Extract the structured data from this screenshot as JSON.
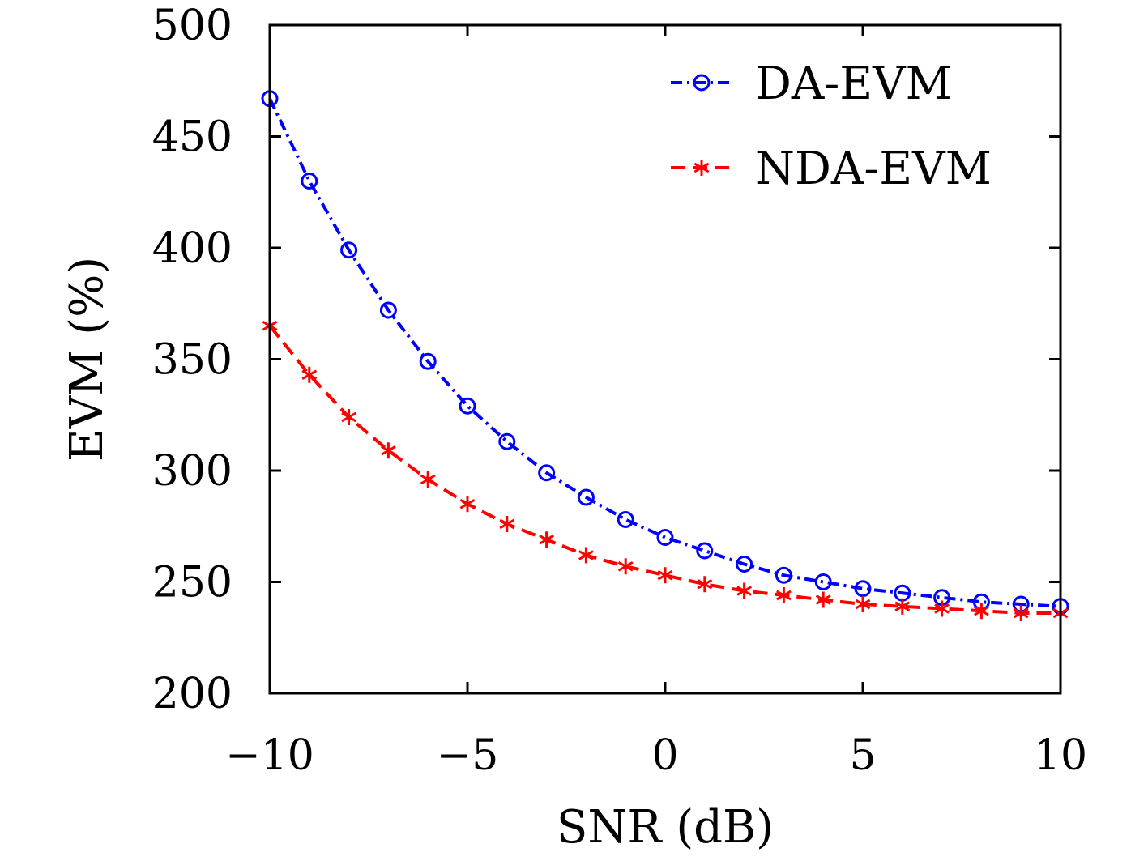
{
  "chart_data": {
    "type": "line",
    "title": "",
    "xlabel": "SNR (dB)",
    "ylabel": "EVM (%)",
    "xlim": [
      -10,
      10
    ],
    "ylim": [
      200,
      500
    ],
    "xticks": [
      -10,
      -5,
      0,
      5,
      10
    ],
    "xtick_labels": [
      "−10",
      "−5",
      "0",
      "5",
      "10"
    ],
    "yticks": [
      200,
      250,
      300,
      350,
      400,
      450,
      500
    ],
    "ytick_labels": [
      "200",
      "250",
      "300",
      "350",
      "400",
      "450",
      "500"
    ],
    "grid": false,
    "legend_position": "top-right",
    "x": [
      -10,
      -9,
      -8,
      -7,
      -6,
      -5,
      -4,
      -3,
      -2,
      -1,
      0,
      1,
      2,
      3,
      4,
      5,
      6,
      7,
      8,
      9,
      10
    ],
    "series": [
      {
        "name": "DA-EVM",
        "color": "#0000ff",
        "line_style": "dash-dot",
        "marker": "circle",
        "values": [
          467,
          430,
          399,
          372,
          349,
          329,
          313,
          299,
          288,
          278,
          270,
          264,
          258,
          253,
          250,
          247,
          245,
          243,
          241,
          240,
          239
        ]
      },
      {
        "name": "NDA-EVM",
        "color": "#ff0000",
        "line_style": "dashed",
        "marker": "asterisk",
        "values": [
          365,
          343,
          324,
          309,
          296,
          285,
          276,
          269,
          262,
          257,
          253,
          249,
          246,
          244,
          242,
          240,
          239,
          238,
          237,
          236,
          236
        ]
      }
    ]
  }
}
